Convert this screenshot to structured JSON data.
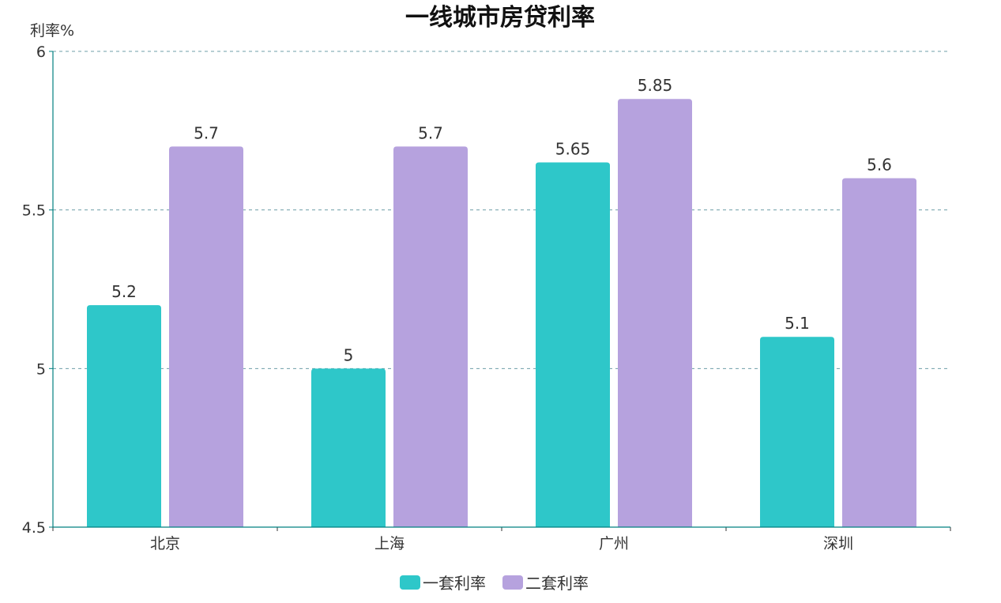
{
  "chart_data": {
    "type": "bar",
    "title": "一线城市房贷利率",
    "xlabel": "",
    "ylabel": "利率%",
    "categories": [
      "北京",
      "上海",
      "广州",
      "深圳"
    ],
    "series": [
      {
        "name": "一套利率",
        "values": [
          5.2,
          5.0,
          5.65,
          5.1
        ],
        "color": "#2ec7c9"
      },
      {
        "name": "二套利率",
        "values": [
          5.7,
          5.7,
          5.85,
          5.6
        ],
        "color": "#b6a2de"
      }
    ],
    "ylim": [
      4.5,
      6
    ],
    "yticks": [
      4.5,
      5,
      5.5,
      6
    ],
    "ytick_labels": [
      "4.5",
      "5",
      "5.5",
      "6"
    ],
    "grid": true,
    "grid_color": "#6f9fa8",
    "axis_color": "#008080",
    "legend_position": "bottom-center",
    "data_labels": true
  }
}
